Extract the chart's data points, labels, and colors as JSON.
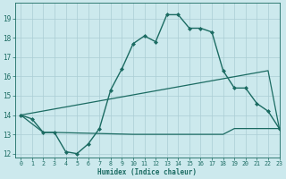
{
  "xlabel": "Humidex (Indice chaleur)",
  "xlim": [
    -0.5,
    23
  ],
  "ylim": [
    11.8,
    19.8
  ],
  "yticks": [
    12,
    13,
    14,
    15,
    16,
    17,
    18,
    19
  ],
  "xticks": [
    0,
    1,
    2,
    3,
    4,
    5,
    6,
    7,
    8,
    9,
    10,
    11,
    12,
    13,
    14,
    15,
    16,
    17,
    18,
    19,
    20,
    21,
    22,
    23
  ],
  "bg_color": "#cce9ed",
  "grid_color": "#aacdd4",
  "line_color": "#1b6b62",
  "line1_x": [
    0,
    1,
    2,
    3,
    4,
    5,
    6,
    7,
    8,
    9,
    10,
    11,
    12,
    13,
    14,
    15,
    16,
    17,
    18,
    19,
    20,
    21,
    22,
    23
  ],
  "line1_y": [
    14.0,
    13.8,
    13.1,
    13.1,
    12.1,
    12.0,
    12.5,
    13.3,
    15.3,
    16.4,
    17.7,
    18.1,
    17.8,
    19.2,
    19.2,
    18.5,
    18.5,
    18.3,
    16.3,
    15.4,
    15.4,
    14.6,
    14.2,
    13.3
  ],
  "line2_x": [
    0,
    22,
    23
  ],
  "line2_y": [
    14.0,
    16.3,
    13.3
  ],
  "line3_x": [
    0,
    2,
    3,
    10,
    11,
    12,
    13,
    14,
    15,
    16,
    17,
    18,
    19,
    20,
    21,
    22,
    23
  ],
  "line3_y": [
    14.0,
    13.1,
    13.1,
    13.0,
    13.0,
    13.0,
    13.0,
    13.0,
    13.0,
    13.0,
    13.0,
    13.0,
    13.3,
    13.3,
    13.3,
    13.3,
    13.3
  ]
}
